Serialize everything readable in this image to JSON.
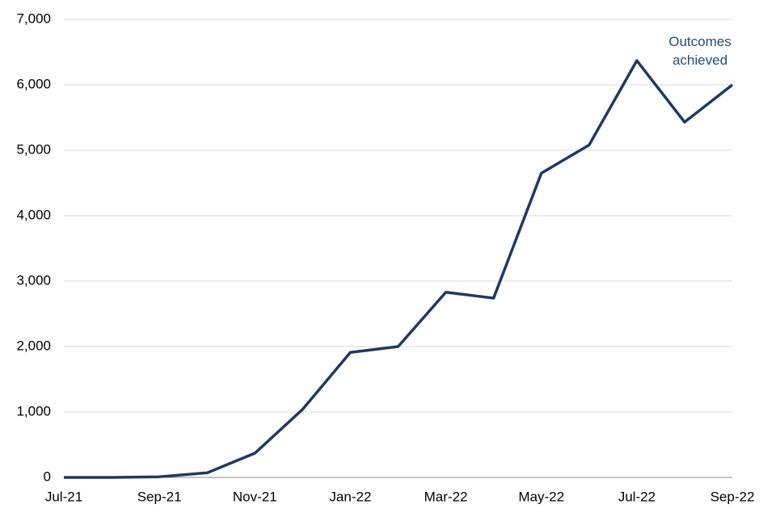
{
  "chart_data": {
    "type": "line",
    "categories": [
      "Jul-21",
      null,
      "Sep-21",
      null,
      "Nov-21",
      null,
      "Jan-22",
      null,
      "Mar-22",
      null,
      "May-22",
      null,
      "Jul-22",
      null,
      "Sep-22"
    ],
    "series": [
      {
        "name": "Outcomes achieved",
        "color": "#203864",
        "values": [
          0,
          0,
          10,
          70,
          370,
          1040,
          1910,
          2000,
          2830,
          2740,
          4650,
          5080,
          6370,
          5430,
          6000
        ]
      }
    ],
    "ylim": [
      0,
      7000
    ],
    "yticks": [
      0,
      {
        "value": 1000,
        "label": "1,000"
      },
      {
        "value": 2000,
        "label": "2,000"
      },
      {
        "value": 3000,
        "label": "3,000"
      },
      {
        "value": 4000,
        "label": "4,000"
      },
      {
        "value": 5000,
        "label": "5,000"
      },
      {
        "value": 6000,
        "label": "6,000"
      },
      {
        "value": 7000,
        "label": "7,000"
      }
    ],
    "grid": true
  }
}
